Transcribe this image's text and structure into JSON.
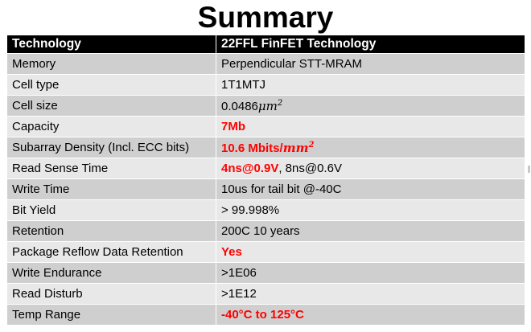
{
  "title": "Summary",
  "table": {
    "headers": [
      "Technology",
      "22FFL FinFET Technology"
    ],
    "rows": [
      {
        "label": "Memory",
        "value": "Perpendicular STT-MRAM"
      },
      {
        "label": "Cell type",
        "value": "1T1MTJ"
      },
      {
        "label": "Cell size",
        "value_num": "0.0486",
        "value_unit": "μm",
        "value_exp": "2"
      },
      {
        "label": "Capacity",
        "value": "7Mb"
      },
      {
        "label": "Subarray Density (Incl. ECC bits)",
        "value_num": "10.6 Mbits/",
        "value_unit": "mm",
        "value_exp": "2"
      },
      {
        "label": "Read Sense Time",
        "value_hl": "4ns@0.9V",
        "value_rest": ", 8ns@0.6V"
      },
      {
        "label": "Write Time",
        "value": "10us for tail bit @-40C"
      },
      {
        "label": "Bit Yield",
        "value": "> 99.998%"
      },
      {
        "label": "Retention",
        "value": "200C 10 years"
      },
      {
        "label": "Package Reflow Data Retention",
        "value": "Yes"
      },
      {
        "label": "Write Endurance",
        "value": ">1E06"
      },
      {
        "label": "Read Disturb",
        "value": ">1E12"
      },
      {
        "label": "Temp Range",
        "value": "-40°C to 125°C"
      }
    ]
  },
  "colors": {
    "header_bg": "#000000",
    "row_dark": "#cfcfcf",
    "row_light": "#e8e8e8",
    "highlight": "#ff0000"
  }
}
